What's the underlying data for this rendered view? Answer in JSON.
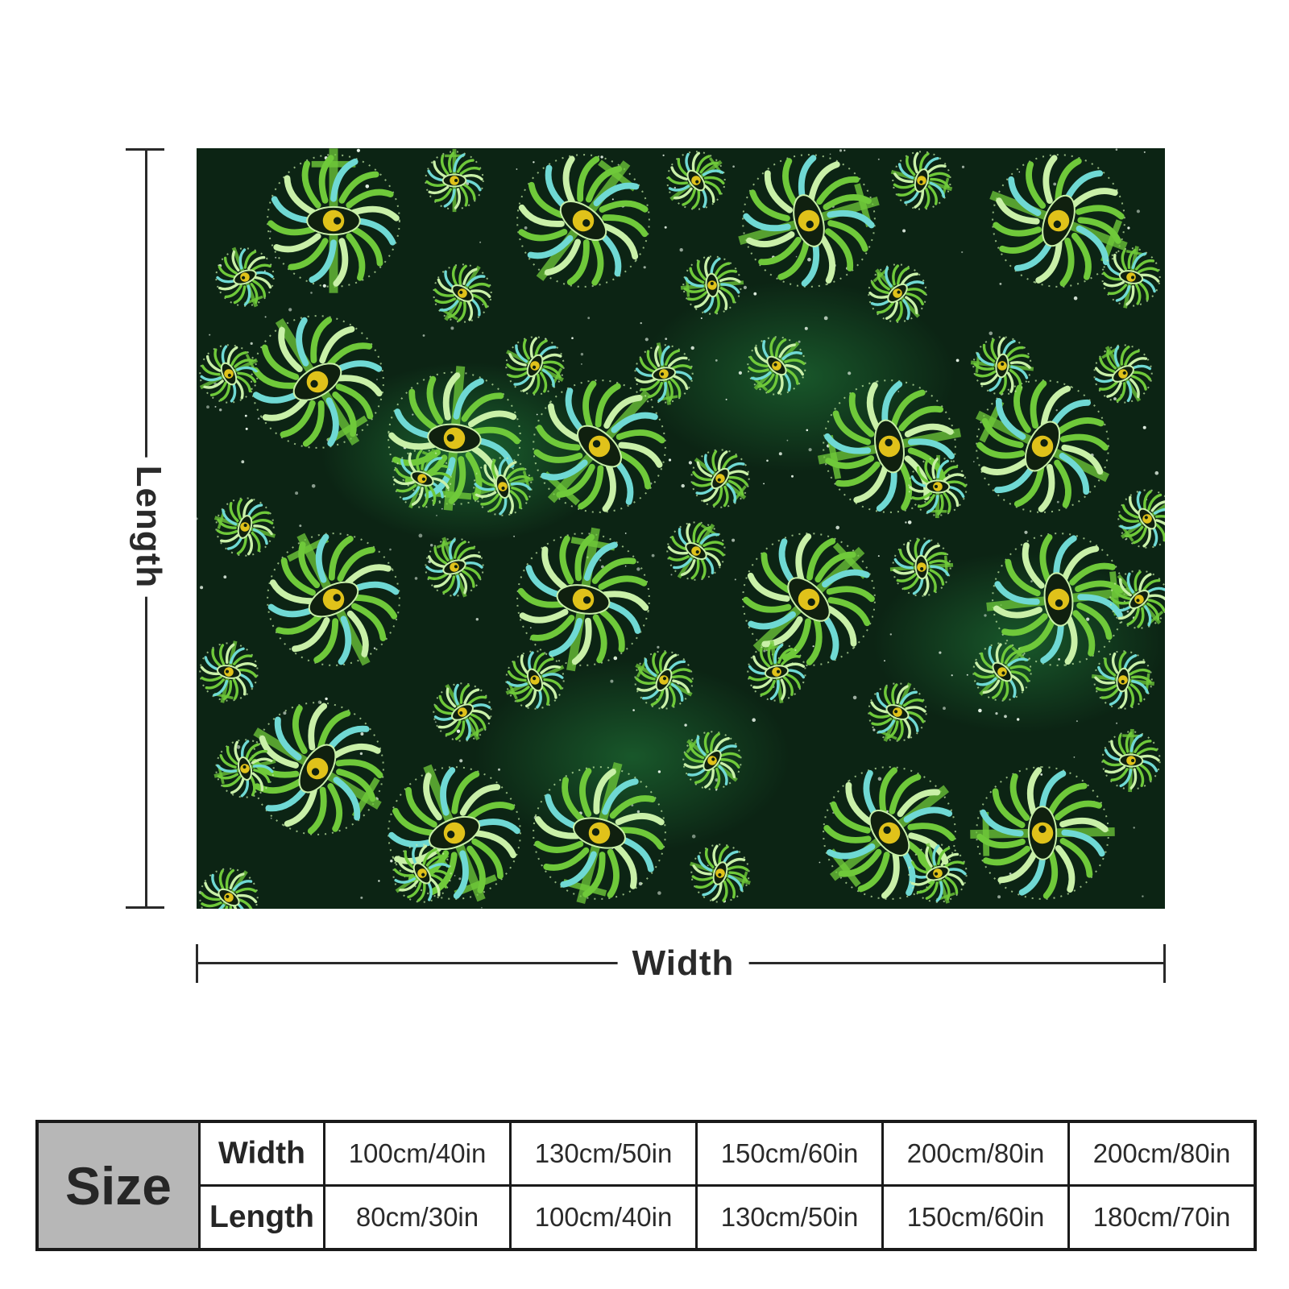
{
  "product_image": {
    "description_icon": "green-eye-sun-pattern-blanket",
    "palette": {
      "background": "#0c2414",
      "glow": "#2f9650",
      "leaf": "#6fc93a",
      "leaf_light": "#c9f0a8",
      "cyan": "#6fd9d4",
      "eye": "#e0c21a"
    }
  },
  "dimensions": {
    "length_label": "Length",
    "width_label": "Width"
  },
  "size_table": {
    "title": "Size",
    "width_label": "Width",
    "length_label": "Length",
    "widths": [
      "100cm/40in",
      "130cm/50in",
      "150cm/60in",
      "200cm/80in",
      "200cm/80in"
    ],
    "lengths": [
      "80cm/30in",
      "100cm/40in",
      "130cm/50in",
      "150cm/60in",
      "180cm/70in"
    ]
  }
}
